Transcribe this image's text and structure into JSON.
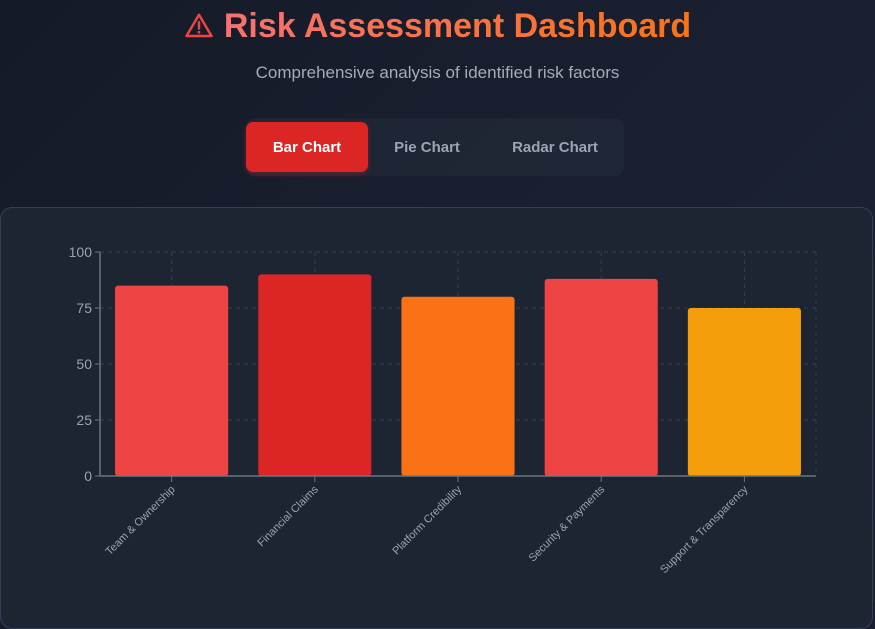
{
  "header": {
    "title": "Risk Assessment Dashboard",
    "title_icon": "warning-triangle-icon",
    "subtitle": "Comprehensive analysis of identified risk factors"
  },
  "tabs": [
    {
      "label": "Bar Chart",
      "active": true
    },
    {
      "label": "Pie Chart",
      "active": false
    },
    {
      "label": "Radar Chart",
      "active": false
    }
  ],
  "colors": {
    "accent": "#dc2626",
    "title_gradient_start": "#f87171",
    "title_gradient_end": "#f97316",
    "background": "#1a2030",
    "panel": "#1d2432"
  },
  "chart_data": {
    "type": "bar",
    "title": "",
    "xlabel": "",
    "ylabel": "",
    "categories": [
      "Team & Ownership",
      "Financial Claims",
      "Platform Credibility",
      "Security & Payments",
      "Support & Transparency"
    ],
    "values": [
      85,
      90,
      80,
      88,
      75
    ],
    "bar_colors": [
      "#ef4444",
      "#dc2626",
      "#f97316",
      "#ef4444",
      "#f59e0b"
    ],
    "ylim": [
      0,
      100
    ],
    "yticks": [
      0,
      25,
      50,
      75,
      100
    ],
    "grid": true,
    "legend": false,
    "xtick_rotation": -45
  }
}
